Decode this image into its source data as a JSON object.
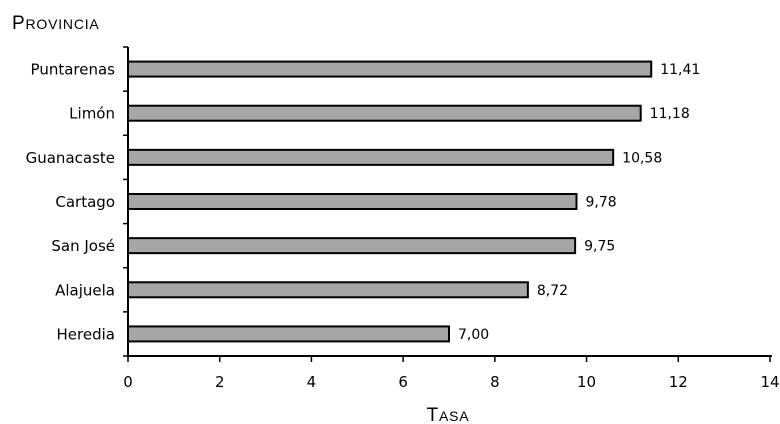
{
  "chart_data": {
    "type": "bar",
    "orientation": "horizontal",
    "ylabel": "Provincia",
    "xlabel": "Tasa",
    "categories": [
      "Puntarenas",
      "Limón",
      "Guanacaste",
      "Cartago",
      "San José",
      "Alajuela",
      "Heredia"
    ],
    "values": [
      11.41,
      11.18,
      10.58,
      9.78,
      9.75,
      8.72,
      7.0
    ],
    "data_labels": [
      "11,41",
      "11,18",
      "10,58",
      "9,78",
      "9,75",
      "8,72",
      "7,00"
    ],
    "xlim": [
      0,
      14
    ],
    "x_ticks": [
      "0",
      "2",
      "4",
      "6",
      "8",
      "10",
      "12",
      "14"
    ],
    "grid": false,
    "legend": "none",
    "bar_color": "#a6a6a6",
    "bar_edge_color": "#000000"
  }
}
